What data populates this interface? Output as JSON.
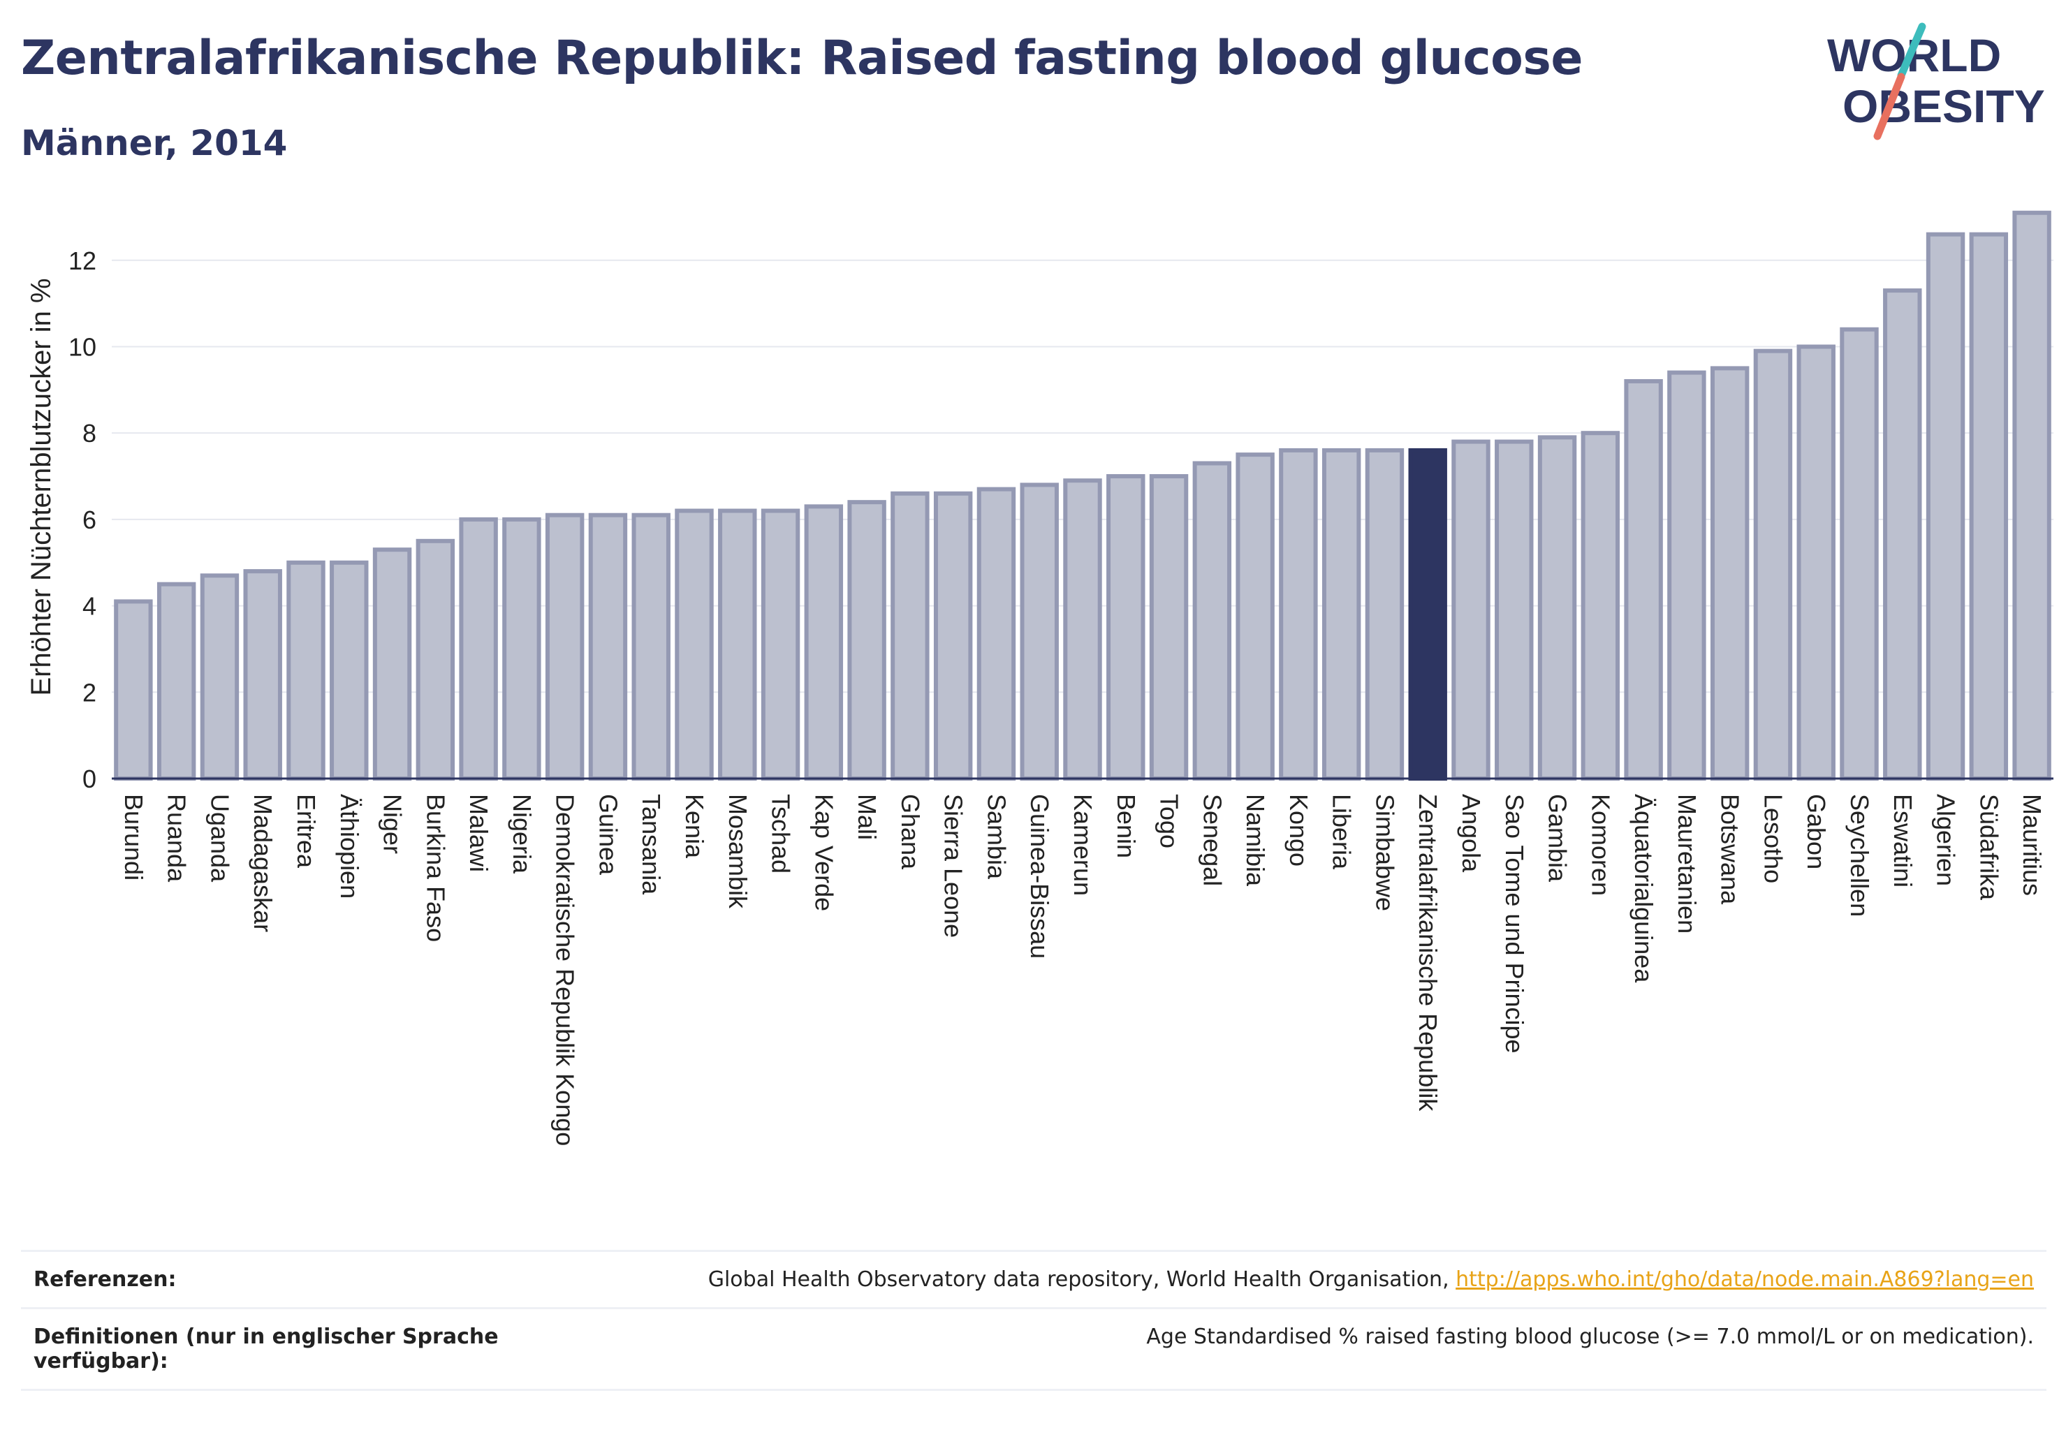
{
  "header": {
    "title": "Zentralafrikanische Republik: Raised fasting blood glucose",
    "subtitle": "Männer, 2014"
  },
  "logo": {
    "line1": "WORLD",
    "line2": "OBESITY"
  },
  "colors": {
    "highlight": "#2d3561",
    "bar_fill": "#bcc0cf",
    "bar_stroke": "#9499b3",
    "accent_teal": "#3dbcbc",
    "accent_coral": "#e8705f",
    "link": "#e8a317"
  },
  "chart_data": {
    "type": "bar",
    "title": "Zentralafrikanische Republik: Raised fasting blood glucose",
    "subtitle": "Männer, 2014",
    "ylabel": "Erhöhter Nüchternblutzucker in %",
    "xlabel": "",
    "ylim": [
      0,
      13.5
    ],
    "yticks": [
      0,
      2,
      4,
      6,
      8,
      10,
      12
    ],
    "highlight": "Zentralafrikanische Republik",
    "categories": [
      "Burundi",
      "Ruanda",
      "Uganda",
      "Madagaskar",
      "Eritrea",
      "Äthiopien",
      "Niger",
      "Burkina Faso",
      "Malawi",
      "Nigeria",
      "Demokratische Republik Kongo",
      "Guinea",
      "Tansania",
      "Kenia",
      "Mosambik",
      "Tschad",
      "Kap Verde",
      "Mali",
      "Ghana",
      "Sierra Leone",
      "Sambia",
      "Guinea-Bissau",
      "Kamerun",
      "Benin",
      "Togo",
      "Senegal",
      "Namibia",
      "Kongo",
      "Liberia",
      "Simbabwe",
      "Zentralafrikanische Republik",
      "Angola",
      "Sao Tome und Principe",
      "Gambia",
      "Komoren",
      "Äquatorialguinea",
      "Mauretanien",
      "Botswana",
      "Lesotho",
      "Gabon",
      "Seychellen",
      "Eswatini",
      "Algerien",
      "Südafrika",
      "Mauritius"
    ],
    "values": [
      4.1,
      4.5,
      4.7,
      4.8,
      5.0,
      5.0,
      5.3,
      5.5,
      6.0,
      6.0,
      6.1,
      6.1,
      6.1,
      6.2,
      6.2,
      6.2,
      6.3,
      6.4,
      6.6,
      6.6,
      6.7,
      6.8,
      6.9,
      7.0,
      7.0,
      7.3,
      7.5,
      7.6,
      7.6,
      7.6,
      7.6,
      7.8,
      7.8,
      7.9,
      8.0,
      9.2,
      9.4,
      9.5,
      9.9,
      10.0,
      10.4,
      11.3,
      12.6,
      12.6,
      13.1
    ],
    "grid": true,
    "legend": "none"
  },
  "footer": {
    "references_label": "Referenzen:",
    "references_text": "Global Health Observatory data repository, World Health Organisation, ",
    "references_link": "http://apps.who.int/gho/data/node.main.A869?lang=en",
    "definitions_label": "Definitionen (nur in englischer Sprache verfügbar):",
    "definitions_text": "Age Standardised % raised fasting blood glucose (>= 7.0 mmol/L or on medication)."
  }
}
